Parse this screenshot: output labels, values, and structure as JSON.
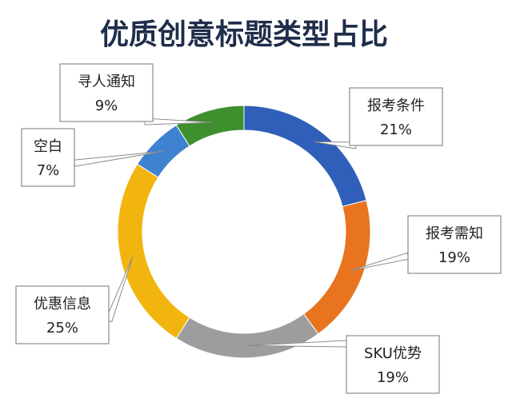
{
  "chart_data": {
    "type": "pie",
    "style": "donut",
    "title": "优质创意标题类型占比",
    "legend": "none",
    "slices": [
      {
        "label": "报考条件",
        "value": 21,
        "value_label": "21%",
        "color": "#2f5fb8"
      },
      {
        "label": "报考需知",
        "value": 19,
        "value_label": "19%",
        "color": "#e8741f"
      },
      {
        "label": "SKU优势",
        "value": 19,
        "value_label": "19%",
        "color": "#9d9d9d"
      },
      {
        "label": "优惠信息",
        "value": 25,
        "value_label": "25%",
        "color": "#f2b50f"
      },
      {
        "label": "空白",
        "value": 7,
        "value_label": "7%",
        "color": "#3f82cf"
      },
      {
        "label": "寻人通知",
        "value": 9,
        "value_label": "9%",
        "color": "#3e8f2d"
      }
    ]
  }
}
